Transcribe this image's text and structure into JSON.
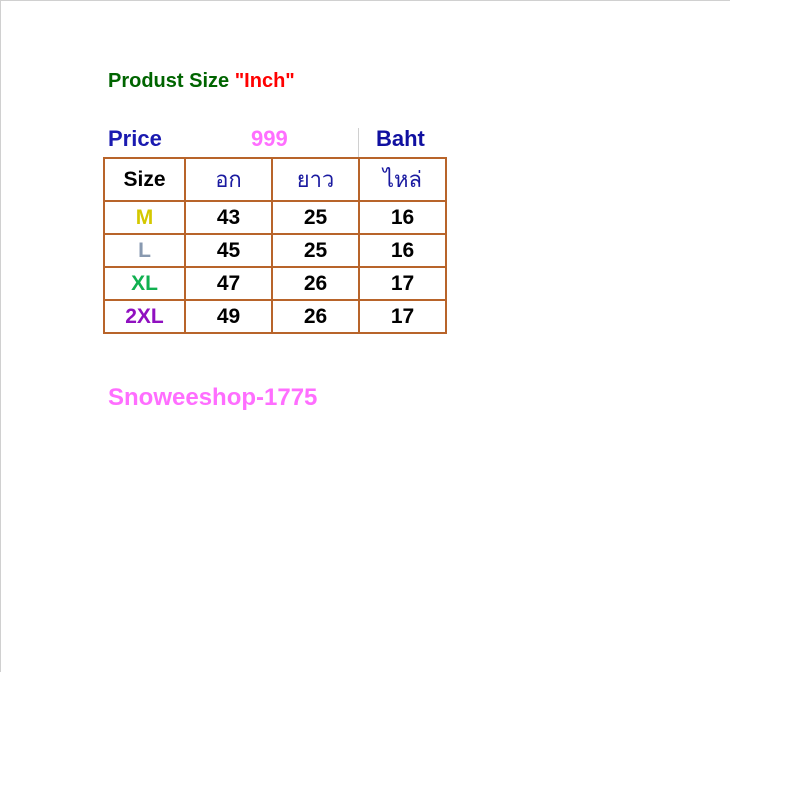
{
  "title": {
    "text": "Produst Size ",
    "unit": "\"Inch\"",
    "color": "#006400",
    "unit_color": "#ff0000"
  },
  "price": {
    "label": "Price",
    "value": "999",
    "currency": "Baht",
    "label_color": "#1a1ab0",
    "value_color": "#ff6eff",
    "currency_color": "#1010a0"
  },
  "table": {
    "headers": [
      "Size",
      "อก",
      "ยาว",
      "ไหล่"
    ],
    "rows": [
      {
        "size": "M",
        "color": "#d4c800",
        "values": [
          "43",
          "25",
          "16"
        ]
      },
      {
        "size": "L",
        "color": "#8899b0",
        "values": [
          "45",
          "25",
          "16"
        ]
      },
      {
        "size": "XL",
        "color": "#10b050",
        "values": [
          "47",
          "26",
          "17"
        ]
      },
      {
        "size": "2XL",
        "color": "#9010c0",
        "values": [
          "49",
          "26",
          "17"
        ]
      }
    ],
    "border_color": "#b8642a"
  },
  "shop": {
    "name": "Snoweeshop-1775",
    "color": "#ff6eff"
  }
}
